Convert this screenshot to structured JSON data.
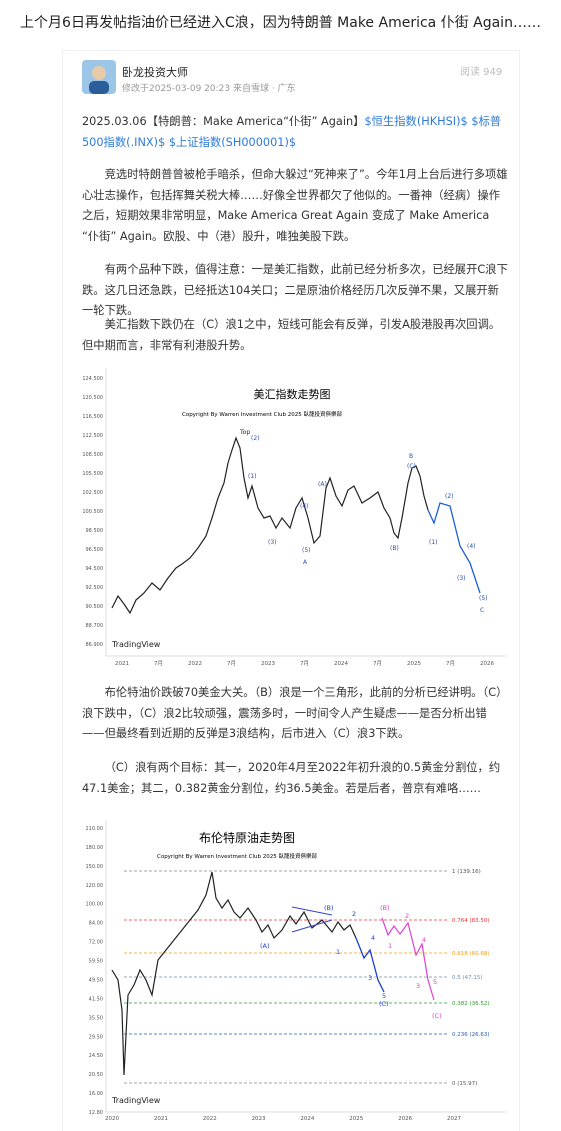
{
  "header": {
    "title": "上个月6日再发帖指油价已经进入C浪，因为特朗普 Make America 仆街 Again……"
  },
  "post": {
    "author": "卧龙投资大师",
    "meta": "修改于2025-03-09 20:23 来自雪球 · 广东",
    "reads": "阅读 949",
    "intro": {
      "date": "2025.03.06",
      "headline": "【特朗普：Make America“仆街” Again】",
      "tags": [
        "$恒生指数(HKHSI)$",
        "$标普500指数(.INX)$",
        "$上证指数(SH000001)$"
      ]
    },
    "paragraphs": [
      "竞选时特朗普曾被枪手暗杀，但命大躲过“死神来了”。今年1月上台后进行多项雄心壮志操作，包括挥舞关税大棒……好像全世界都欠了他似的。一番神（经病）操作之后，短期效果非常明显，Make America Great Again 变成了 Make America “仆街” Again。欧股、中（港）股升，唯独美股下跌。",
      "有两个品种下跌，值得注意：一是美汇指数，此前已经分析多次，已经展开C浪下跌。这几日还急跌，已经抵达104关口；二是原油价格经历几次反弹不果，又展开新一轮下跌。",
      "美汇指数下跌仍在（C）浪1之中，短线可能会有反弹，引发A股港股再次回调。但中期而言，非常有利港股升势。",
      "布伦特油价跌破70美金大关。（B）浪是一个三角形，此前的分析已经讲明。（C）浪下跌中，（C）浪2比较顽强，震荡多时，一时间令人产生疑虑——是否分析出错——但最终看到近期的反弹是3浪结构，后市进入（C）浪3下跌。",
      "（C）浪有两个目标：其一，2020年4月至2022年初升浪的0.5黄金分割位，约47.1美金；其二，0.382黄金分割位，约36.5美金。若是后者，普京有难咯……"
    ]
  },
  "figures": [
    {
      "title": "美汇指数走势图",
      "copyright": "Copyright By Warren Investment Club 2025 臥龍投資俱樂部",
      "brand": "TradingView",
      "y_labels": [
        "124.500",
        "120.500",
        "116.500",
        "112.500",
        "108.500",
        "105.500",
        "102.500",
        "100.500",
        "98.500",
        "96.500",
        "94.500",
        "92.500",
        "90.500",
        "88.700",
        "86.900"
      ],
      "x_labels": [
        "2021",
        "7月",
        "2022",
        "7月",
        "2023",
        "7月",
        "2024",
        "7月",
        "2025",
        "7月",
        "2026"
      ],
      "annotations": [
        "Top",
        "(2)",
        "(1)",
        "(3)",
        "(4)",
        "(5)",
        "A",
        "(A)",
        "(B)",
        "B",
        "(C)",
        "(1)",
        "(2)",
        "(3)",
        "(4)",
        "(5)",
        "C"
      ]
    },
    {
      "title": "布伦特原油走势图",
      "copyright": "Copyright By Warren Investment Club 2025 臥龍投資俱樂部",
      "brand": "TradingView",
      "y_labels": [
        "210.00",
        "180.00",
        "150.00",
        "120.00",
        "100.00",
        "84.00",
        "72.00",
        "59.50",
        "49.50",
        "41.50",
        "35.50",
        "29.50",
        "24.50",
        "20.50",
        "16.00",
        "12.80"
      ],
      "x_labels": [
        "2020",
        "2021",
        "2022",
        "2023",
        "2024",
        "2025",
        "2026",
        "2027"
      ],
      "fib_labels": [
        "1 (139.16)",
        "0.764 (83.50)",
        "0.618 (60.68)",
        "0.5 (47.15)",
        "0.382 (36.52)",
        "0.236 (26.63)",
        "0 (15.97)"
      ],
      "annotations": [
        "(A)",
        "(B)",
        "(C)",
        "1",
        "2",
        "3",
        "4",
        "5",
        "(B)",
        "1",
        "2",
        "3",
        "4",
        "5",
        "(C)"
      ]
    }
  ]
}
